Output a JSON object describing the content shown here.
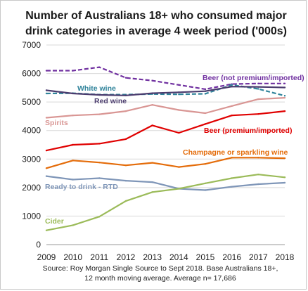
{
  "chart_data": {
    "type": "line",
    "title_lines": [
      "Number of Australians 18+ who consumed major",
      "drink categories in average 4 week period ('000s)"
    ],
    "x": [
      2009,
      2010,
      2011,
      2012,
      2013,
      2014,
      2015,
      2016,
      2017,
      2018
    ],
    "ylim": [
      0,
      7000
    ],
    "yticks": [
      0,
      1000,
      2000,
      3000,
      4000,
      5000,
      6000,
      7000
    ],
    "grid": true,
    "series": [
      {
        "name": "Beer (not premium/imported)",
        "color": "#7030a0",
        "dash": "dashed",
        "values": [
          6100,
          6100,
          6220,
          5850,
          5750,
          5600,
          5450,
          5630,
          5650,
          5650
        ]
      },
      {
        "name": "White wine",
        "color": "#31849b",
        "dash": "dashed",
        "values": [
          5300,
          5310,
          5260,
          5260,
          5280,
          5270,
          5290,
          5600,
          5460,
          5220
        ]
      },
      {
        "name": "Red wine",
        "color": "#4b3c6e",
        "dash": "solid",
        "values": [
          5410,
          5300,
          5250,
          5230,
          5310,
          5340,
          5380,
          5540,
          5530,
          5510
        ]
      },
      {
        "name": "Spirits",
        "color": "#d99694",
        "dash": "solid",
        "values": [
          4450,
          4530,
          4570,
          4680,
          4900,
          4720,
          4610,
          4860,
          5100,
          5150
        ]
      },
      {
        "name": "Beer (premium/imported)",
        "color": "#e00000",
        "dash": "solid",
        "values": [
          3300,
          3500,
          3540,
          3700,
          4180,
          3920,
          4230,
          4530,
          4580,
          4680
        ]
      },
      {
        "name": "Champagne or sparkling wine",
        "color": "#e46c0a",
        "dash": "solid",
        "values": [
          2680,
          2950,
          2880,
          2780,
          2870,
          2720,
          2830,
          3050,
          3050,
          3030
        ]
      },
      {
        "name": "Ready to drink - RTD",
        "color": "#7f96b8",
        "dash": "solid",
        "values": [
          2400,
          2280,
          2330,
          2240,
          2190,
          1960,
          1910,
          2030,
          2120,
          2170
        ]
      },
      {
        "name": "Cider",
        "color": "#9bbb59",
        "dash": "solid",
        "values": [
          500,
          680,
          980,
          1530,
          1840,
          1960,
          2150,
          2330,
          2460,
          2360
        ]
      }
    ],
    "source_lines": [
      "Source: Roy Morgan Single Source to Sept 2018. Base Australians 18+,",
      "12 month moving average. Average n= 17,686"
    ]
  }
}
